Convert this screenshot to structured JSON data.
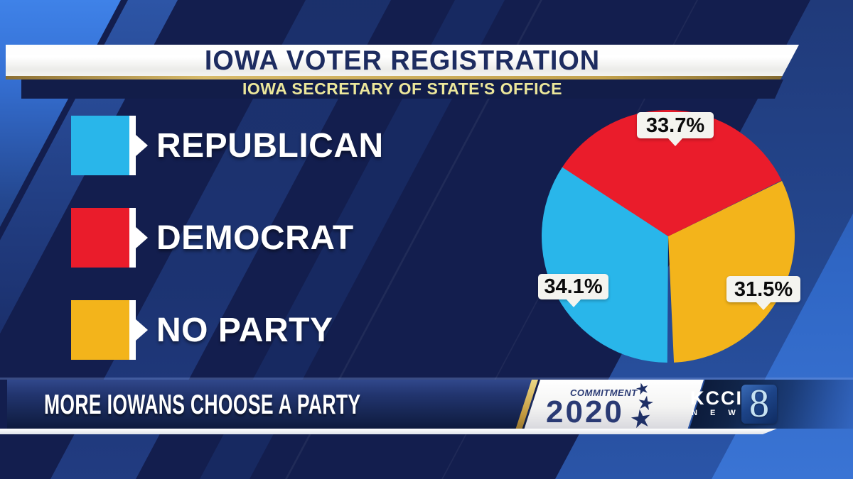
{
  "header": {
    "title": "IOWA VOTER REGISTRATION",
    "subtitle": "IOWA SECRETARY OF STATE'S OFFICE"
  },
  "legend": {
    "items": [
      {
        "label": "REPUBLICAN",
        "color": "#29b6ea"
      },
      {
        "label": "DEMOCRAT",
        "color": "#ea1c2b"
      },
      {
        "label": "NO PARTY",
        "color": "#f3b41b"
      }
    ]
  },
  "chart_data": {
    "type": "pie",
    "title": "IOWA VOTER REGISTRATION",
    "subtitle": "IOWA SECRETARY OF STATE'S OFFICE",
    "unit": "%",
    "legend_position": "left",
    "slices": [
      {
        "label": "DEMOCRAT",
        "value": 33.7,
        "display": "33.7%",
        "color": "#ea1c2b",
        "start_angle": -57.6
      },
      {
        "label": "NO PARTY",
        "value": 31.5,
        "display": "31.5%",
        "color": "#f3b41b",
        "start_angle": 64.0
      },
      {
        "label": "REPUBLICAN",
        "value": 34.1,
        "display": "34.1%",
        "color": "#29b6ea",
        "start_angle": 180.4
      }
    ]
  },
  "footer": {
    "headline": "MORE IOWANS CHOOSE A PARTY",
    "commitment": {
      "line1": "COMMITMENT",
      "line2": "2020"
    },
    "station": {
      "call_letters": "KCCI",
      "news": "N E W S",
      "channel": "8"
    }
  },
  "icons": {
    "star": "★"
  },
  "colors": {
    "background_navy": "#131e4e",
    "accent_gold": "#c3a24c",
    "title_navy": "#1d2c60",
    "subtitle_yellow": "#ece79b",
    "bright_blue": "#3f82e8"
  }
}
